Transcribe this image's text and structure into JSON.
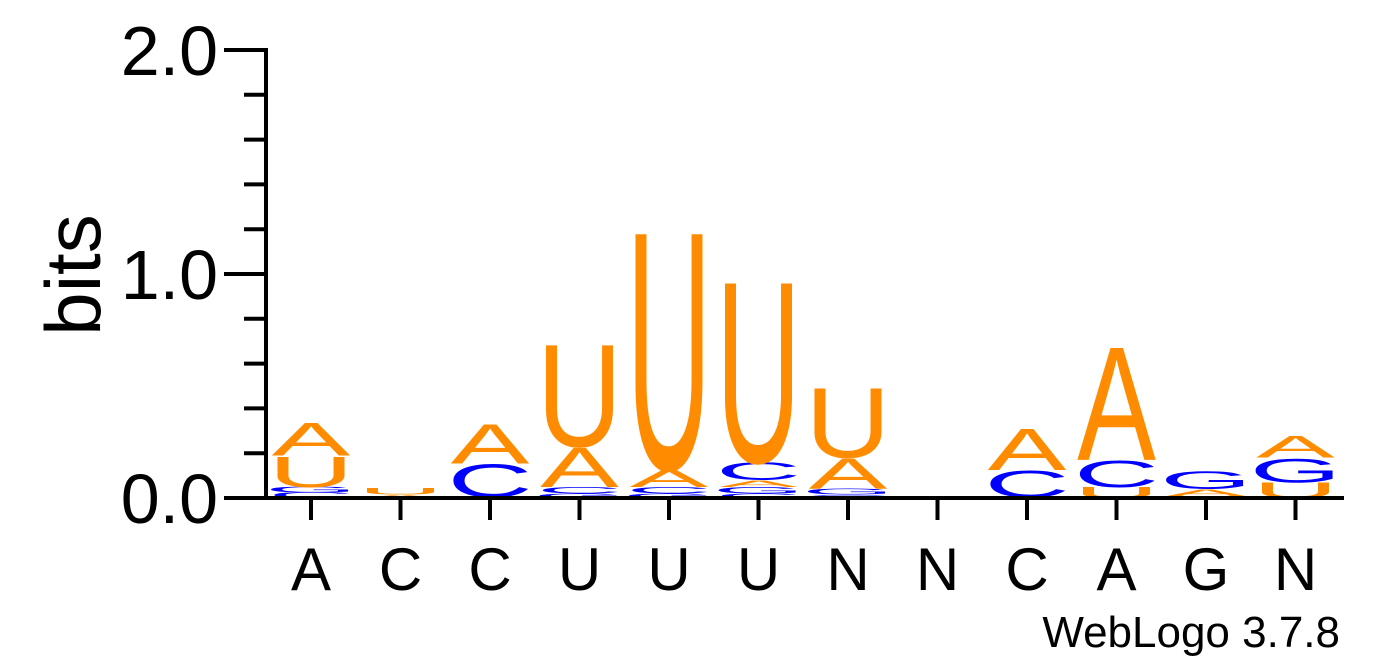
{
  "chart_data": {
    "type": "sequence_logo",
    "ylabel": "bits",
    "ylim": [
      0,
      2.0
    ],
    "yticks": [
      "0.0",
      "1.0",
      "2.0"
    ],
    "colors": {
      "A": "#ff8c00",
      "U": "#ff8c00",
      "C": "#0000ff",
      "G": "#0000ff"
    },
    "positions": [
      {
        "label": "A",
        "stack": [
          {
            "letter": "C",
            "bits": 0.025
          },
          {
            "letter": "G",
            "bits": 0.025
          },
          {
            "letter": "U",
            "bits": 0.14
          },
          {
            "letter": "A",
            "bits": 0.15
          }
        ]
      },
      {
        "label": "C",
        "stack": [
          {
            "letter": "A",
            "bits": 0.015
          },
          {
            "letter": "U",
            "bits": 0.03
          }
        ]
      },
      {
        "label": "C",
        "stack": [
          {
            "letter": "U",
            "bits": 0.005
          },
          {
            "letter": "C",
            "bits": 0.15
          },
          {
            "letter": "A",
            "bits": 0.18
          }
        ]
      },
      {
        "label": "U",
        "stack": [
          {
            "letter": "G",
            "bits": 0.02
          },
          {
            "letter": "C",
            "bits": 0.03
          },
          {
            "letter": "A",
            "bits": 0.18
          },
          {
            "letter": "U",
            "bits": 0.47
          }
        ]
      },
      {
        "label": "U",
        "stack": [
          {
            "letter": "G",
            "bits": 0.02
          },
          {
            "letter": "C",
            "bits": 0.03
          },
          {
            "letter": "A",
            "bits": 0.08
          },
          {
            "letter": "U",
            "bits": 1.09
          }
        ]
      },
      {
        "label": "U",
        "stack": [
          {
            "letter": "C",
            "bits": 0.02
          },
          {
            "letter": "G",
            "bits": 0.03
          },
          {
            "letter": "A",
            "bits": 0.03
          },
          {
            "letter": "C",
            "bits": 0.08
          },
          {
            "letter": "U",
            "bits": 0.83
          }
        ]
      },
      {
        "label": "N",
        "stack": [
          {
            "letter": "C",
            "bits": 0.015
          },
          {
            "letter": "G",
            "bits": 0.025
          },
          {
            "letter": "A",
            "bits": 0.14
          },
          {
            "letter": "U",
            "bits": 0.32
          }
        ]
      },
      {
        "label": "N",
        "stack": []
      },
      {
        "label": "C",
        "stack": [
          {
            "letter": "U",
            "bits": 0.005
          },
          {
            "letter": "C",
            "bits": 0.12
          },
          {
            "letter": "A",
            "bits": 0.19
          }
        ]
      },
      {
        "label": "A",
        "stack": [
          {
            "letter": "U",
            "bits": 0.05
          },
          {
            "letter": "C",
            "bits": 0.12
          },
          {
            "letter": "A",
            "bits": 0.52
          }
        ]
      },
      {
        "label": "G",
        "stack": [
          {
            "letter": "U",
            "bits": 0.01
          },
          {
            "letter": "A",
            "bits": 0.03
          },
          {
            "letter": "G",
            "bits": 0.08
          }
        ]
      },
      {
        "label": "N",
        "stack": [
          {
            "letter": "U",
            "bits": 0.07
          },
          {
            "letter": "G",
            "bits": 0.11
          },
          {
            "letter": "A",
            "bits": 0.1
          }
        ]
      }
    ]
  },
  "credit": "WebLogo 3.7.8"
}
